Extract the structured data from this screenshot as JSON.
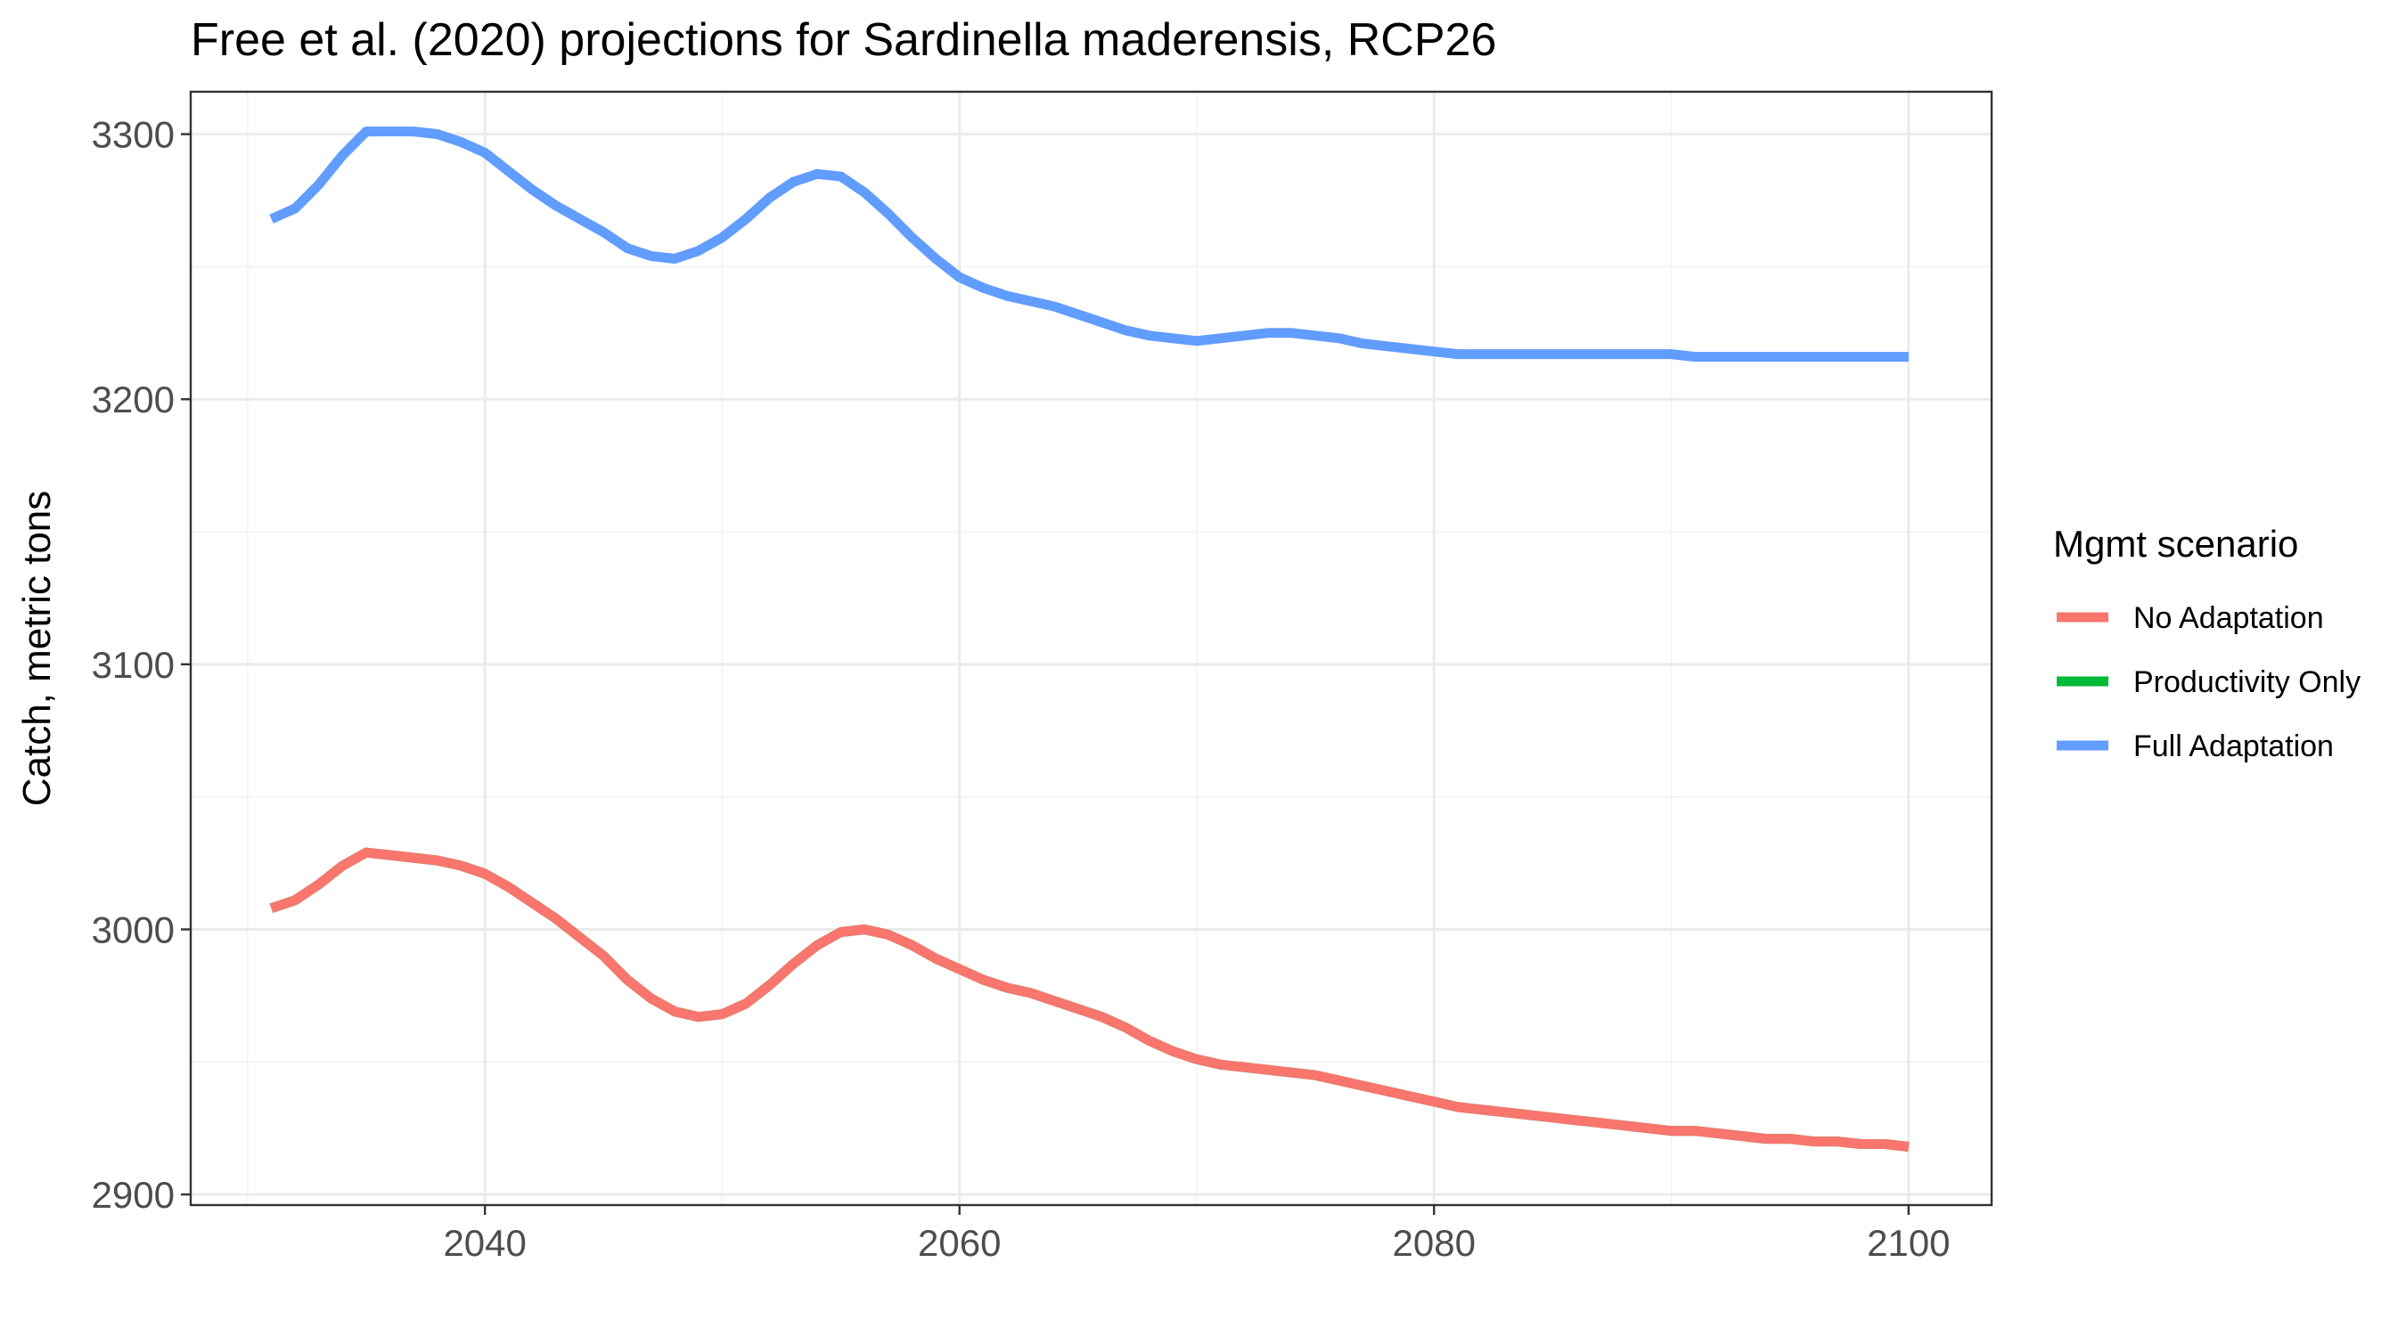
{
  "chart_data": {
    "type": "line",
    "title": "Free et al. (2020) projections for Sardinella maderensis, RCP26",
    "xlabel": "",
    "ylabel": "Catch, metric tons",
    "xlim": [
      2027.6,
      2103.5
    ],
    "ylim": [
      2896,
      3316
    ],
    "x_ticks": [
      2040,
      2060,
      2080,
      2100
    ],
    "y_ticks": [
      2900,
      3000,
      3100,
      3200,
      3300
    ],
    "grid": true,
    "legend": {
      "title": "Mgmt scenario",
      "position": "right",
      "entries": [
        {
          "label": "No Adaptation",
          "color": "#F8766D"
        },
        {
          "label": "Productivity Only",
          "color": "#00BA38"
        },
        {
          "label": "Full Adaptation",
          "color": "#619CFF"
        }
      ]
    },
    "x": [
      2031,
      2032,
      2033,
      2034,
      2035,
      2036,
      2037,
      2038,
      2039,
      2040,
      2041,
      2042,
      2043,
      2044,
      2045,
      2046,
      2047,
      2048,
      2049,
      2050,
      2051,
      2052,
      2053,
      2054,
      2055,
      2056,
      2057,
      2058,
      2059,
      2060,
      2061,
      2062,
      2063,
      2064,
      2065,
      2066,
      2067,
      2068,
      2069,
      2070,
      2071,
      2072,
      2073,
      2074,
      2075,
      2076,
      2077,
      2078,
      2079,
      2080,
      2081,
      2082,
      2083,
      2084,
      2085,
      2086,
      2087,
      2088,
      2089,
      2090,
      2091,
      2092,
      2093,
      2094,
      2095,
      2096,
      2097,
      2098,
      2099,
      2100
    ],
    "series": [
      {
        "name": "No Adaptation",
        "color": "#F8766D",
        "values": [
          3008,
          3011,
          3017,
          3024,
          3029,
          3028,
          3027,
          3026,
          3024,
          3021,
          3016,
          3010,
          3004,
          2997,
          2990,
          2981,
          2974,
          2969,
          2967,
          2968,
          2972,
          2979,
          2987,
          2994,
          2999,
          3000,
          2998,
          2994,
          2989,
          2985,
          2981,
          2978,
          2976,
          2973,
          2970,
          2967,
          2963,
          2958,
          2954,
          2951,
          2949,
          2948,
          2947,
          2946,
          2945,
          2943,
          2941,
          2939,
          2937,
          2935,
          2933,
          2932,
          2931,
          2930,
          2929,
          2928,
          2927,
          2926,
          2925,
          2924,
          2924,
          2923,
          2922,
          2921,
          2921,
          2920,
          2920,
          2919,
          2919,
          2918
        ]
      },
      {
        "name": "Productivity Only",
        "color": "#00BA38",
        "values": [
          3008,
          3011,
          3017,
          3024,
          3029,
          3028,
          3027,
          3026,
          3024,
          3021,
          3016,
          3010,
          3004,
          2997,
          2990,
          2981,
          2974,
          2969,
          2967,
          2968,
          2972,
          2979,
          2987,
          2994,
          2999,
          3000,
          2998,
          2994,
          2989,
          2985,
          2981,
          2978,
          2976,
          2973,
          2970,
          2967,
          2963,
          2958,
          2954,
          2951,
          2949,
          2948,
          2947,
          2946,
          2945,
          2943,
          2941,
          2939,
          2937,
          2935,
          2933,
          2932,
          2931,
          2930,
          2929,
          2928,
          2927,
          2926,
          2925,
          2924,
          2924,
          2923,
          2922,
          2921,
          2921,
          2920,
          2920,
          2919,
          2919,
          2918
        ]
      },
      {
        "name": "Full Adaptation",
        "color": "#619CFF",
        "values": [
          3268,
          3272,
          3281,
          3292,
          3301,
          3301,
          3301,
          3300,
          3297,
          3293,
          3286,
          3279,
          3273,
          3268,
          3263,
          3257,
          3254,
          3253,
          3256,
          3261,
          3268,
          3276,
          3282,
          3285,
          3284,
          3278,
          3270,
          3261,
          3253,
          3246,
          3242,
          3239,
          3237,
          3235,
          3232,
          3229,
          3226,
          3224,
          3223,
          3222,
          3223,
          3224,
          3225,
          3225,
          3224,
          3223,
          3221,
          3220,
          3219,
          3218,
          3217,
          3217,
          3217,
          3217,
          3217,
          3217,
          3217,
          3217,
          3217,
          3217,
          3216,
          3216,
          3216,
          3216,
          3216,
          3216,
          3216,
          3216,
          3216,
          3216
        ]
      }
    ]
  }
}
